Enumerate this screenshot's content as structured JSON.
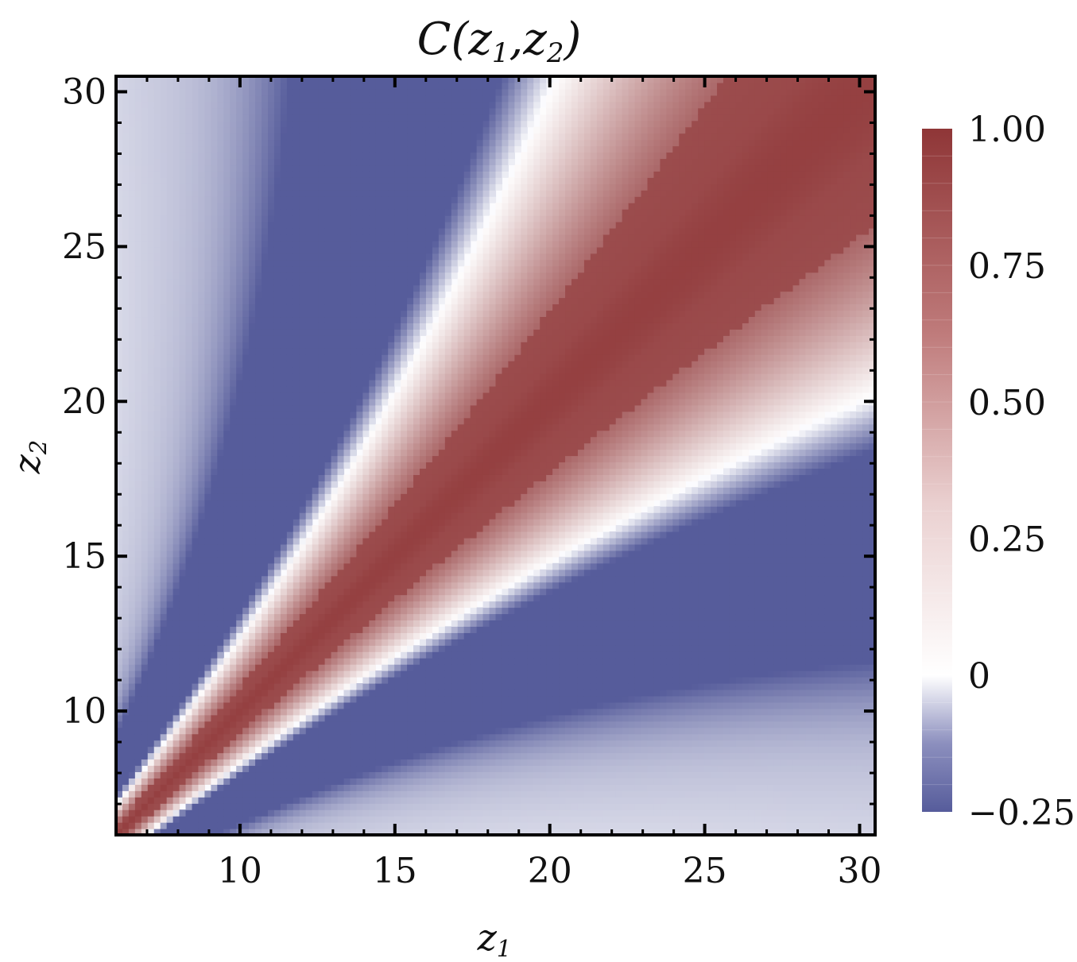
{
  "chart_data": {
    "type": "heatmap",
    "title": "C(z1,z2)",
    "title_parts": {
      "main": "C(",
      "var1": "z",
      "sub1": "1",
      "sep": ",",
      "var2": "z",
      "sub2": "2",
      "end": ")"
    },
    "xlabel": {
      "var": "z",
      "sub": "1"
    },
    "ylabel": {
      "var": "z",
      "sub": "2"
    },
    "xlim": [
      6,
      30.5
    ],
    "ylim": [
      6,
      30.5
    ],
    "x_ticks": [
      10,
      15,
      20,
      25,
      30
    ],
    "y_ticks": [
      10,
      15,
      20,
      25,
      30
    ],
    "x_tick_labels": [
      "10",
      "15",
      "20",
      "25",
      "30"
    ],
    "y_tick_labels": [
      "10",
      "15",
      "20",
      "25",
      "30"
    ],
    "colorbar": {
      "min": -0.25,
      "max": 1.0,
      "ticks": [
        -0.25,
        0,
        0.25,
        0.5,
        0.75,
        1.0
      ],
      "tick_labels": [
        "−0.25",
        "0",
        "0.25",
        "0.50",
        "0.75",
        "1.00"
      ],
      "colors": {
        "negative": "#565c9b",
        "zero": "#ffffff",
        "positive": "#8f3637"
      }
    },
    "grid": false
  }
}
